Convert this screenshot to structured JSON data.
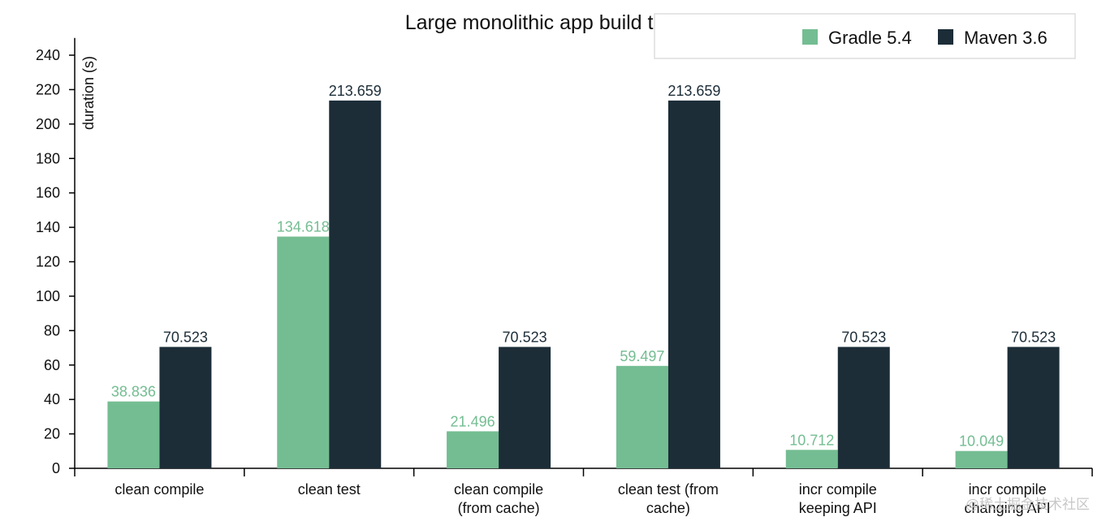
{
  "chart_data": {
    "type": "bar",
    "title": "Large monolithic app build times",
    "ylabel": "duration (s)",
    "xlabel": "",
    "ylim": [
      0,
      250
    ],
    "yticks": [
      0,
      20,
      40,
      60,
      80,
      100,
      120,
      140,
      160,
      180,
      200,
      220,
      240
    ],
    "categories": [
      [
        "clean compile"
      ],
      [
        "clean test"
      ],
      [
        "clean compile",
        "(from cache)"
      ],
      [
        "clean test (from",
        "cache)"
      ],
      [
        "incr compile",
        "keeping API"
      ],
      [
        "incr compile",
        "changing API"
      ]
    ],
    "series": [
      {
        "name": "Gradle 5.4",
        "color": "#74bd92",
        "values": [
          38.836,
          134.618,
          21.496,
          59.497,
          10.712,
          10.049
        ]
      },
      {
        "name": "Maven 3.6",
        "color": "#1c2d38",
        "values": [
          70.523,
          213.659,
          70.523,
          213.659,
          70.523,
          70.523
        ]
      }
    ],
    "legend_position": "top-right",
    "grid": false,
    "data_labels": true
  },
  "watermark": "@稀土掘金技术社区"
}
